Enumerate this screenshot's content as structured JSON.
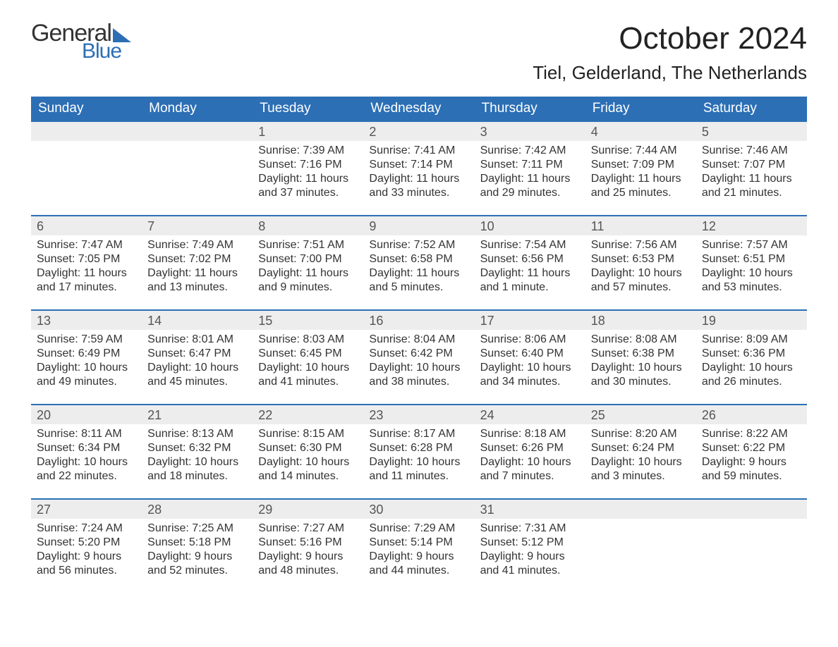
{
  "brand": {
    "word1": "General",
    "word2": "Blue",
    "accent_color": "#2c6fb5"
  },
  "header": {
    "month_title": "October 2024",
    "location": "Tiel, Gelderland, The Netherlands"
  },
  "calendar": {
    "type": "table",
    "days_of_week": [
      "Sunday",
      "Monday",
      "Tuesday",
      "Wednesday",
      "Thursday",
      "Friday",
      "Saturday"
    ],
    "header_bg": "#2c6fb5",
    "header_text_color": "#ffffff",
    "daynum_bg": "#ededed",
    "cell_border_color": "#2c6fb5",
    "body_fontsize": 16,
    "head_fontsize": 19,
    "leading_blanks": 2,
    "days": [
      {
        "n": "1",
        "sunrise": "Sunrise: 7:39 AM",
        "sunset": "Sunset: 7:16 PM",
        "daylight": "Daylight: 11 hours and 37 minutes."
      },
      {
        "n": "2",
        "sunrise": "Sunrise: 7:41 AM",
        "sunset": "Sunset: 7:14 PM",
        "daylight": "Daylight: 11 hours and 33 minutes."
      },
      {
        "n": "3",
        "sunrise": "Sunrise: 7:42 AM",
        "sunset": "Sunset: 7:11 PM",
        "daylight": "Daylight: 11 hours and 29 minutes."
      },
      {
        "n": "4",
        "sunrise": "Sunrise: 7:44 AM",
        "sunset": "Sunset: 7:09 PM",
        "daylight": "Daylight: 11 hours and 25 minutes."
      },
      {
        "n": "5",
        "sunrise": "Sunrise: 7:46 AM",
        "sunset": "Sunset: 7:07 PM",
        "daylight": "Daylight: 11 hours and 21 minutes."
      },
      {
        "n": "6",
        "sunrise": "Sunrise: 7:47 AM",
        "sunset": "Sunset: 7:05 PM",
        "daylight": "Daylight: 11 hours and 17 minutes."
      },
      {
        "n": "7",
        "sunrise": "Sunrise: 7:49 AM",
        "sunset": "Sunset: 7:02 PM",
        "daylight": "Daylight: 11 hours and 13 minutes."
      },
      {
        "n": "8",
        "sunrise": "Sunrise: 7:51 AM",
        "sunset": "Sunset: 7:00 PM",
        "daylight": "Daylight: 11 hours and 9 minutes."
      },
      {
        "n": "9",
        "sunrise": "Sunrise: 7:52 AM",
        "sunset": "Sunset: 6:58 PM",
        "daylight": "Daylight: 11 hours and 5 minutes."
      },
      {
        "n": "10",
        "sunrise": "Sunrise: 7:54 AM",
        "sunset": "Sunset: 6:56 PM",
        "daylight": "Daylight: 11 hours and 1 minute."
      },
      {
        "n": "11",
        "sunrise": "Sunrise: 7:56 AM",
        "sunset": "Sunset: 6:53 PM",
        "daylight": "Daylight: 10 hours and 57 minutes."
      },
      {
        "n": "12",
        "sunrise": "Sunrise: 7:57 AM",
        "sunset": "Sunset: 6:51 PM",
        "daylight": "Daylight: 10 hours and 53 minutes."
      },
      {
        "n": "13",
        "sunrise": "Sunrise: 7:59 AM",
        "sunset": "Sunset: 6:49 PM",
        "daylight": "Daylight: 10 hours and 49 minutes."
      },
      {
        "n": "14",
        "sunrise": "Sunrise: 8:01 AM",
        "sunset": "Sunset: 6:47 PM",
        "daylight": "Daylight: 10 hours and 45 minutes."
      },
      {
        "n": "15",
        "sunrise": "Sunrise: 8:03 AM",
        "sunset": "Sunset: 6:45 PM",
        "daylight": "Daylight: 10 hours and 41 minutes."
      },
      {
        "n": "16",
        "sunrise": "Sunrise: 8:04 AM",
        "sunset": "Sunset: 6:42 PM",
        "daylight": "Daylight: 10 hours and 38 minutes."
      },
      {
        "n": "17",
        "sunrise": "Sunrise: 8:06 AM",
        "sunset": "Sunset: 6:40 PM",
        "daylight": "Daylight: 10 hours and 34 minutes."
      },
      {
        "n": "18",
        "sunrise": "Sunrise: 8:08 AM",
        "sunset": "Sunset: 6:38 PM",
        "daylight": "Daylight: 10 hours and 30 minutes."
      },
      {
        "n": "19",
        "sunrise": "Sunrise: 8:09 AM",
        "sunset": "Sunset: 6:36 PM",
        "daylight": "Daylight: 10 hours and 26 minutes."
      },
      {
        "n": "20",
        "sunrise": "Sunrise: 8:11 AM",
        "sunset": "Sunset: 6:34 PM",
        "daylight": "Daylight: 10 hours and 22 minutes."
      },
      {
        "n": "21",
        "sunrise": "Sunrise: 8:13 AM",
        "sunset": "Sunset: 6:32 PM",
        "daylight": "Daylight: 10 hours and 18 minutes."
      },
      {
        "n": "22",
        "sunrise": "Sunrise: 8:15 AM",
        "sunset": "Sunset: 6:30 PM",
        "daylight": "Daylight: 10 hours and 14 minutes."
      },
      {
        "n": "23",
        "sunrise": "Sunrise: 8:17 AM",
        "sunset": "Sunset: 6:28 PM",
        "daylight": "Daylight: 10 hours and 11 minutes."
      },
      {
        "n": "24",
        "sunrise": "Sunrise: 8:18 AM",
        "sunset": "Sunset: 6:26 PM",
        "daylight": "Daylight: 10 hours and 7 minutes."
      },
      {
        "n": "25",
        "sunrise": "Sunrise: 8:20 AM",
        "sunset": "Sunset: 6:24 PM",
        "daylight": "Daylight: 10 hours and 3 minutes."
      },
      {
        "n": "26",
        "sunrise": "Sunrise: 8:22 AM",
        "sunset": "Sunset: 6:22 PM",
        "daylight": "Daylight: 9 hours and 59 minutes."
      },
      {
        "n": "27",
        "sunrise": "Sunrise: 7:24 AM",
        "sunset": "Sunset: 5:20 PM",
        "daylight": "Daylight: 9 hours and 56 minutes."
      },
      {
        "n": "28",
        "sunrise": "Sunrise: 7:25 AM",
        "sunset": "Sunset: 5:18 PM",
        "daylight": "Daylight: 9 hours and 52 minutes."
      },
      {
        "n": "29",
        "sunrise": "Sunrise: 7:27 AM",
        "sunset": "Sunset: 5:16 PM",
        "daylight": "Daylight: 9 hours and 48 minutes."
      },
      {
        "n": "30",
        "sunrise": "Sunrise: 7:29 AM",
        "sunset": "Sunset: 5:14 PM",
        "daylight": "Daylight: 9 hours and 44 minutes."
      },
      {
        "n": "31",
        "sunrise": "Sunrise: 7:31 AM",
        "sunset": "Sunset: 5:12 PM",
        "daylight": "Daylight: 9 hours and 41 minutes."
      }
    ]
  }
}
